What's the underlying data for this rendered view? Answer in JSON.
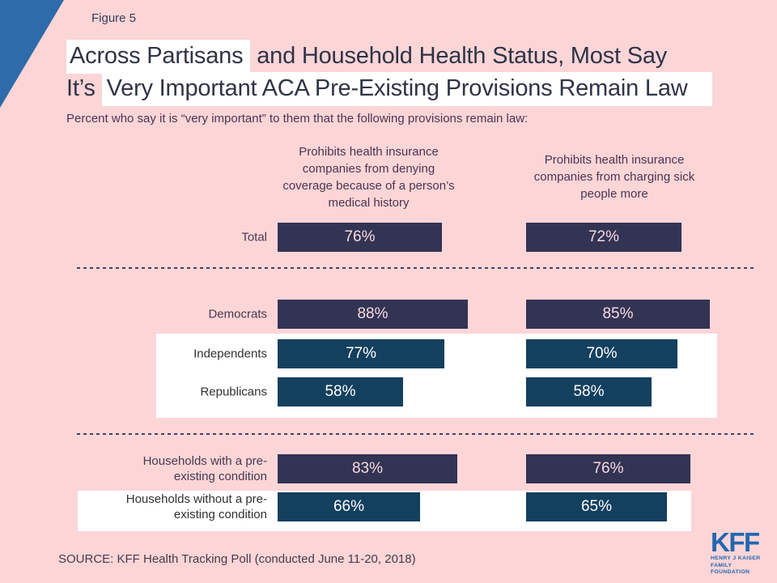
{
  "figure_label": "Figure 5",
  "title": {
    "line1_highlight": "Across Partisans",
    "line1_rest": " and Household Health Status, Most Say",
    "line2_prefix": "It’s ",
    "line2_highlight": "Very Important ACA Pre-Existing Provisions Remain Law"
  },
  "subtitle": "Percent who say it is “very important” to them that the following provisions remain law:",
  "chart_data": {
    "type": "bar",
    "orientation": "horizontal",
    "unit": "percent",
    "value_range": [
      0,
      100
    ],
    "column_headers": [
      "Prohibits health insurance\ncompanies from denying\ncoverage because of a person’s\nmedical history",
      "Prohibits health insurance\ncompanies from charging sick\npeople more"
    ],
    "rows": [
      {
        "label": "Total",
        "values": [
          76,
          72
        ],
        "white_band": false
      },
      {
        "label": "Democrats",
        "values": [
          88,
          85
        ],
        "white_band": false
      },
      {
        "label": "Independents",
        "values": [
          77,
          70
        ],
        "white_band": true
      },
      {
        "label": "Republicans",
        "values": [
          58,
          58
        ],
        "white_band": true
      },
      {
        "label": "Households with a pre-\nexisting condition",
        "values": [
          83,
          76
        ],
        "white_band": false
      },
      {
        "label": "Households without a pre-\nexisting condition",
        "values": [
          66,
          65
        ],
        "white_band": true
      }
    ],
    "row_groups": [
      [
        "Total"
      ],
      [
        "Democrats",
        "Independents",
        "Republicans"
      ],
      [
        "Households with a pre-existing condition",
        "Households without a pre-existing condition"
      ]
    ]
  },
  "source": "SOURCE: KFF Health Tracking Poll (conducted June 11-20, 2018)",
  "logo": {
    "text": "KFF",
    "line1": "HENRY J KAISER",
    "line2": "FAMILY FOUNDATION"
  },
  "colors": {
    "background": "#fcd5d7",
    "accent_triangle": "#2e6baa",
    "navy_bar": "#333354",
    "teal_bar": "#14405f",
    "navy_bar_text": "#f6dbe0",
    "teal_bar_text": "#ffffff",
    "label_on_pink": "#46394e",
    "label_on_white": "#303030",
    "logo_blue": "#2268b0"
  }
}
